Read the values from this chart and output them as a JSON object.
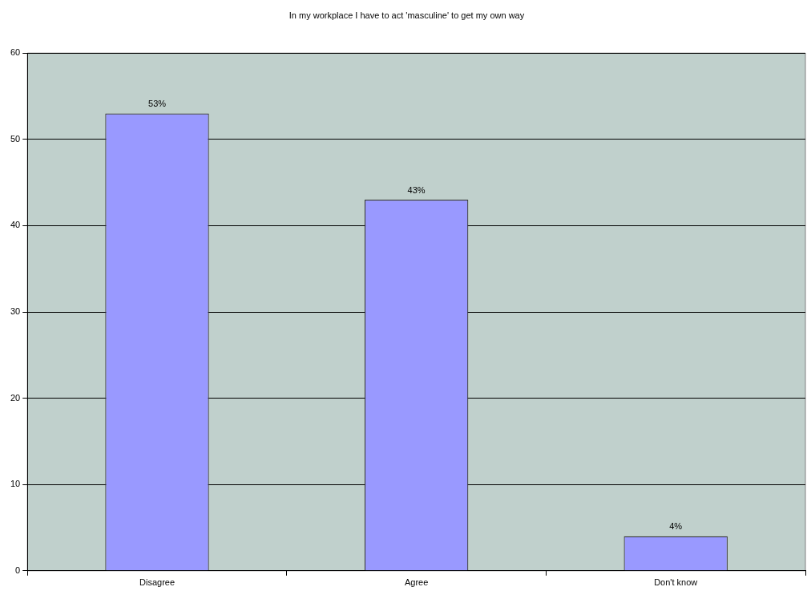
{
  "chart_data": {
    "type": "bar",
    "title": "In my workplace I have to act 'masculine' to get my own way",
    "categories": [
      "Disagree",
      "Agree",
      "Don't know"
    ],
    "values": [
      53,
      43,
      4
    ],
    "value_labels": [
      "53%",
      "43%",
      "4%"
    ],
    "color": "#9999ff",
    "ylim": [
      0,
      60
    ],
    "yticks": [
      0,
      10,
      20,
      30,
      40,
      50,
      60
    ],
    "grid": "y",
    "legend": false
  }
}
